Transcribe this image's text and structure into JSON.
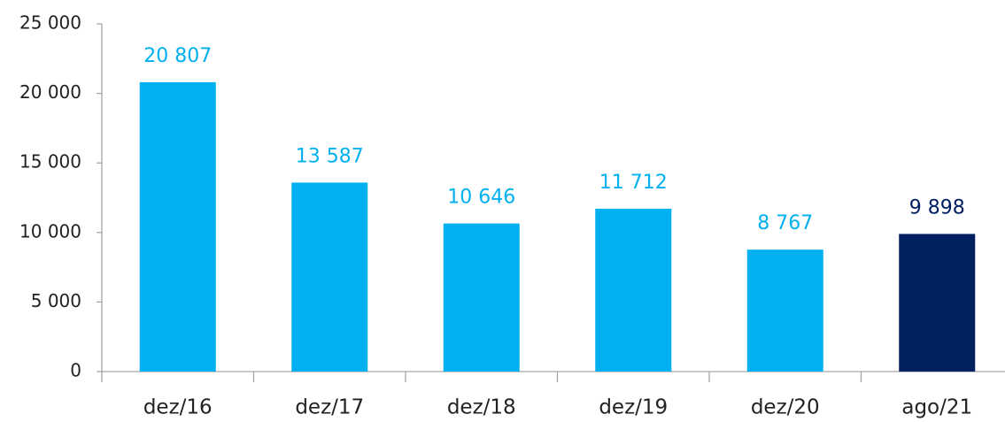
{
  "chart_data": {
    "type": "bar",
    "categories": [
      "dez/16",
      "dez/17",
      "dez/18",
      "dez/19",
      "dez/20",
      "ago/21"
    ],
    "values": [
      20807,
      13587,
      10646,
      11712,
      8767,
      9898
    ],
    "value_labels": [
      "20 807",
      "13 587",
      "10 646",
      "11 712",
      "8 767",
      "9 898"
    ],
    "colors": [
      "#00b0f0",
      "#00b0f0",
      "#00b0f0",
      "#00b0f0",
      "#00b0f0",
      "#002060"
    ],
    "ylim": [
      0,
      25000
    ],
    "yticks": [
      0,
      {
        "value": 5000,
        "label": "5 000"
      },
      {
        "value": 10000,
        "label": "10 000"
      },
      {
        "value": 15000,
        "label": "15 000"
      },
      {
        "value": 20000,
        "label": "20 000"
      },
      {
        "value": 25000,
        "label": "25 000"
      }
    ],
    "grid": false
  }
}
